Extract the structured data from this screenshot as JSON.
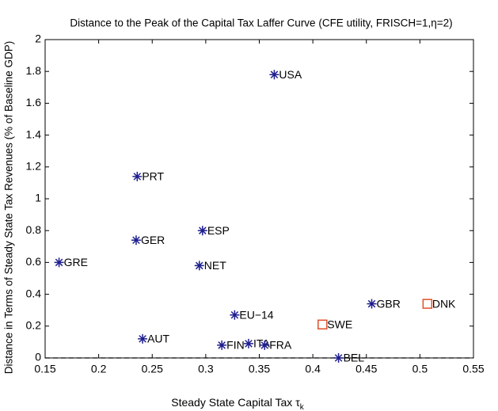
{
  "chart_data": {
    "type": "scatter",
    "title": "Distance to the Peak of the Capital Tax Laffer Curve (CFE utility, FRISCH=1,η=2)",
    "xlabel": "Steady State Capital Tax τ",
    "xlabel_sub": "k",
    "ylabel": "Distance in Terms of Steady State Tax Revenues (% of Baseline GDP)",
    "xlim": [
      0.15,
      0.55
    ],
    "xticks": [
      0.15,
      0.2,
      0.25,
      0.3,
      0.35,
      0.4,
      0.45,
      0.5,
      0.55
    ],
    "ylim": [
      0,
      2
    ],
    "yticks": [
      0,
      0.2,
      0.4,
      0.6,
      0.8,
      1,
      1.2,
      1.4,
      1.6,
      1.8,
      2
    ],
    "hline": 0,
    "series": [
      {
        "marker": "asterisk",
        "color": "#1f1f8f",
        "labels": [
          "USA",
          "PRT",
          "GER",
          "ESP",
          "GRE",
          "NET",
          "EU−14",
          "AUT",
          "FIN",
          "ITA",
          "FRA",
          "BEL",
          "GBR"
        ],
        "x": [
          0.364,
          0.236,
          0.235,
          0.297,
          0.163,
          0.294,
          0.327,
          0.241,
          0.315,
          0.34,
          0.355,
          0.424,
          0.455
        ],
        "values": [
          1.78,
          1.14,
          0.74,
          0.8,
          0.6,
          0.58,
          0.27,
          0.12,
          0.08,
          0.09,
          0.08,
          0.0,
          0.34
        ]
      },
      {
        "marker": "square",
        "color": "#e0502a",
        "labels": [
          "SWE",
          "DNK"
        ],
        "x": [
          0.409,
          0.507
        ],
        "values": [
          0.21,
          0.34
        ]
      }
    ]
  }
}
